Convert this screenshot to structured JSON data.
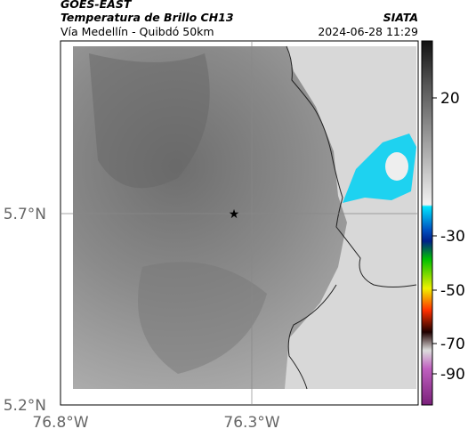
{
  "header": {
    "source": "GOES-EAST",
    "title": "Temperatura de Brillo CH13",
    "org": "SIATA",
    "subtitle": "Vía Medellín - Quibdó 50km",
    "timestamp": "2024-06-28 11:29"
  },
  "map": {
    "lat_labels": [
      "5.7°N",
      "5.2°N"
    ],
    "lon_labels": [
      "76.8°W",
      "76.3°W"
    ]
  },
  "colorbar": {
    "ticks": [
      20,
      -30,
      -50,
      -70,
      -90
    ]
  }
}
